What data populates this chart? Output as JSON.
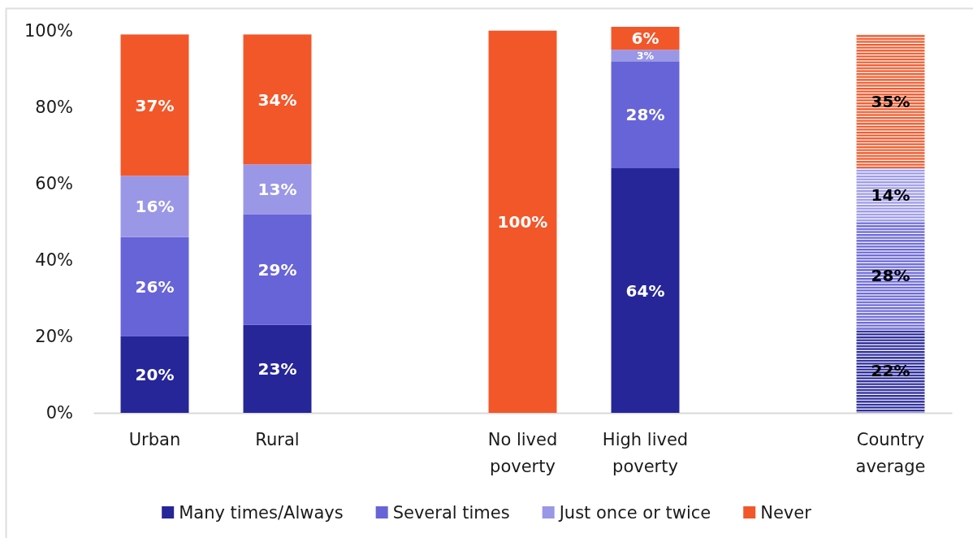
{
  "chart_data": {
    "type": "bar",
    "stacked": true,
    "categories": [
      "Urban",
      "Rural",
      null,
      "No lived poverty",
      "High lived poverty",
      null,
      "Country average"
    ],
    "series": [
      {
        "name": "Many times/Always",
        "color": "#262698",
        "values": [
          20,
          23,
          null,
          null,
          64,
          null,
          22
        ],
        "value_labels": [
          "20%",
          "23%",
          null,
          null,
          "64%",
          null,
          "22%"
        ]
      },
      {
        "name": "Several times",
        "color": "#6764d8",
        "values": [
          26,
          29,
          null,
          null,
          28,
          null,
          28
        ],
        "value_labels": [
          "26%",
          "29%",
          null,
          null,
          "28%",
          null,
          "28%"
        ]
      },
      {
        "name": "Just once or twice",
        "color": "#9a97e6",
        "values": [
          16,
          13,
          null,
          null,
          3,
          null,
          14
        ],
        "value_labels": [
          "16%",
          "13%",
          null,
          null,
          "3%",
          null,
          "14%"
        ]
      },
      {
        "name": "Never",
        "color": "#f2572a",
        "values": [
          37,
          34,
          null,
          100,
          6,
          null,
          35
        ],
        "value_labels": [
          "37%",
          "34%",
          null,
          "100%",
          "6%",
          null,
          "35%"
        ]
      }
    ],
    "ylim": [
      0,
      101
    ],
    "yticks": [
      {
        "value": 0,
        "label": "0%"
      },
      {
        "value": 20,
        "label": "20%"
      },
      {
        "value": 40,
        "label": "40%"
      },
      {
        "value": 60,
        "label": "60%"
      },
      {
        "value": 80,
        "label": "80%"
      },
      {
        "value": 100,
        "label": "100%"
      }
    ],
    "legend": "bottom"
  }
}
